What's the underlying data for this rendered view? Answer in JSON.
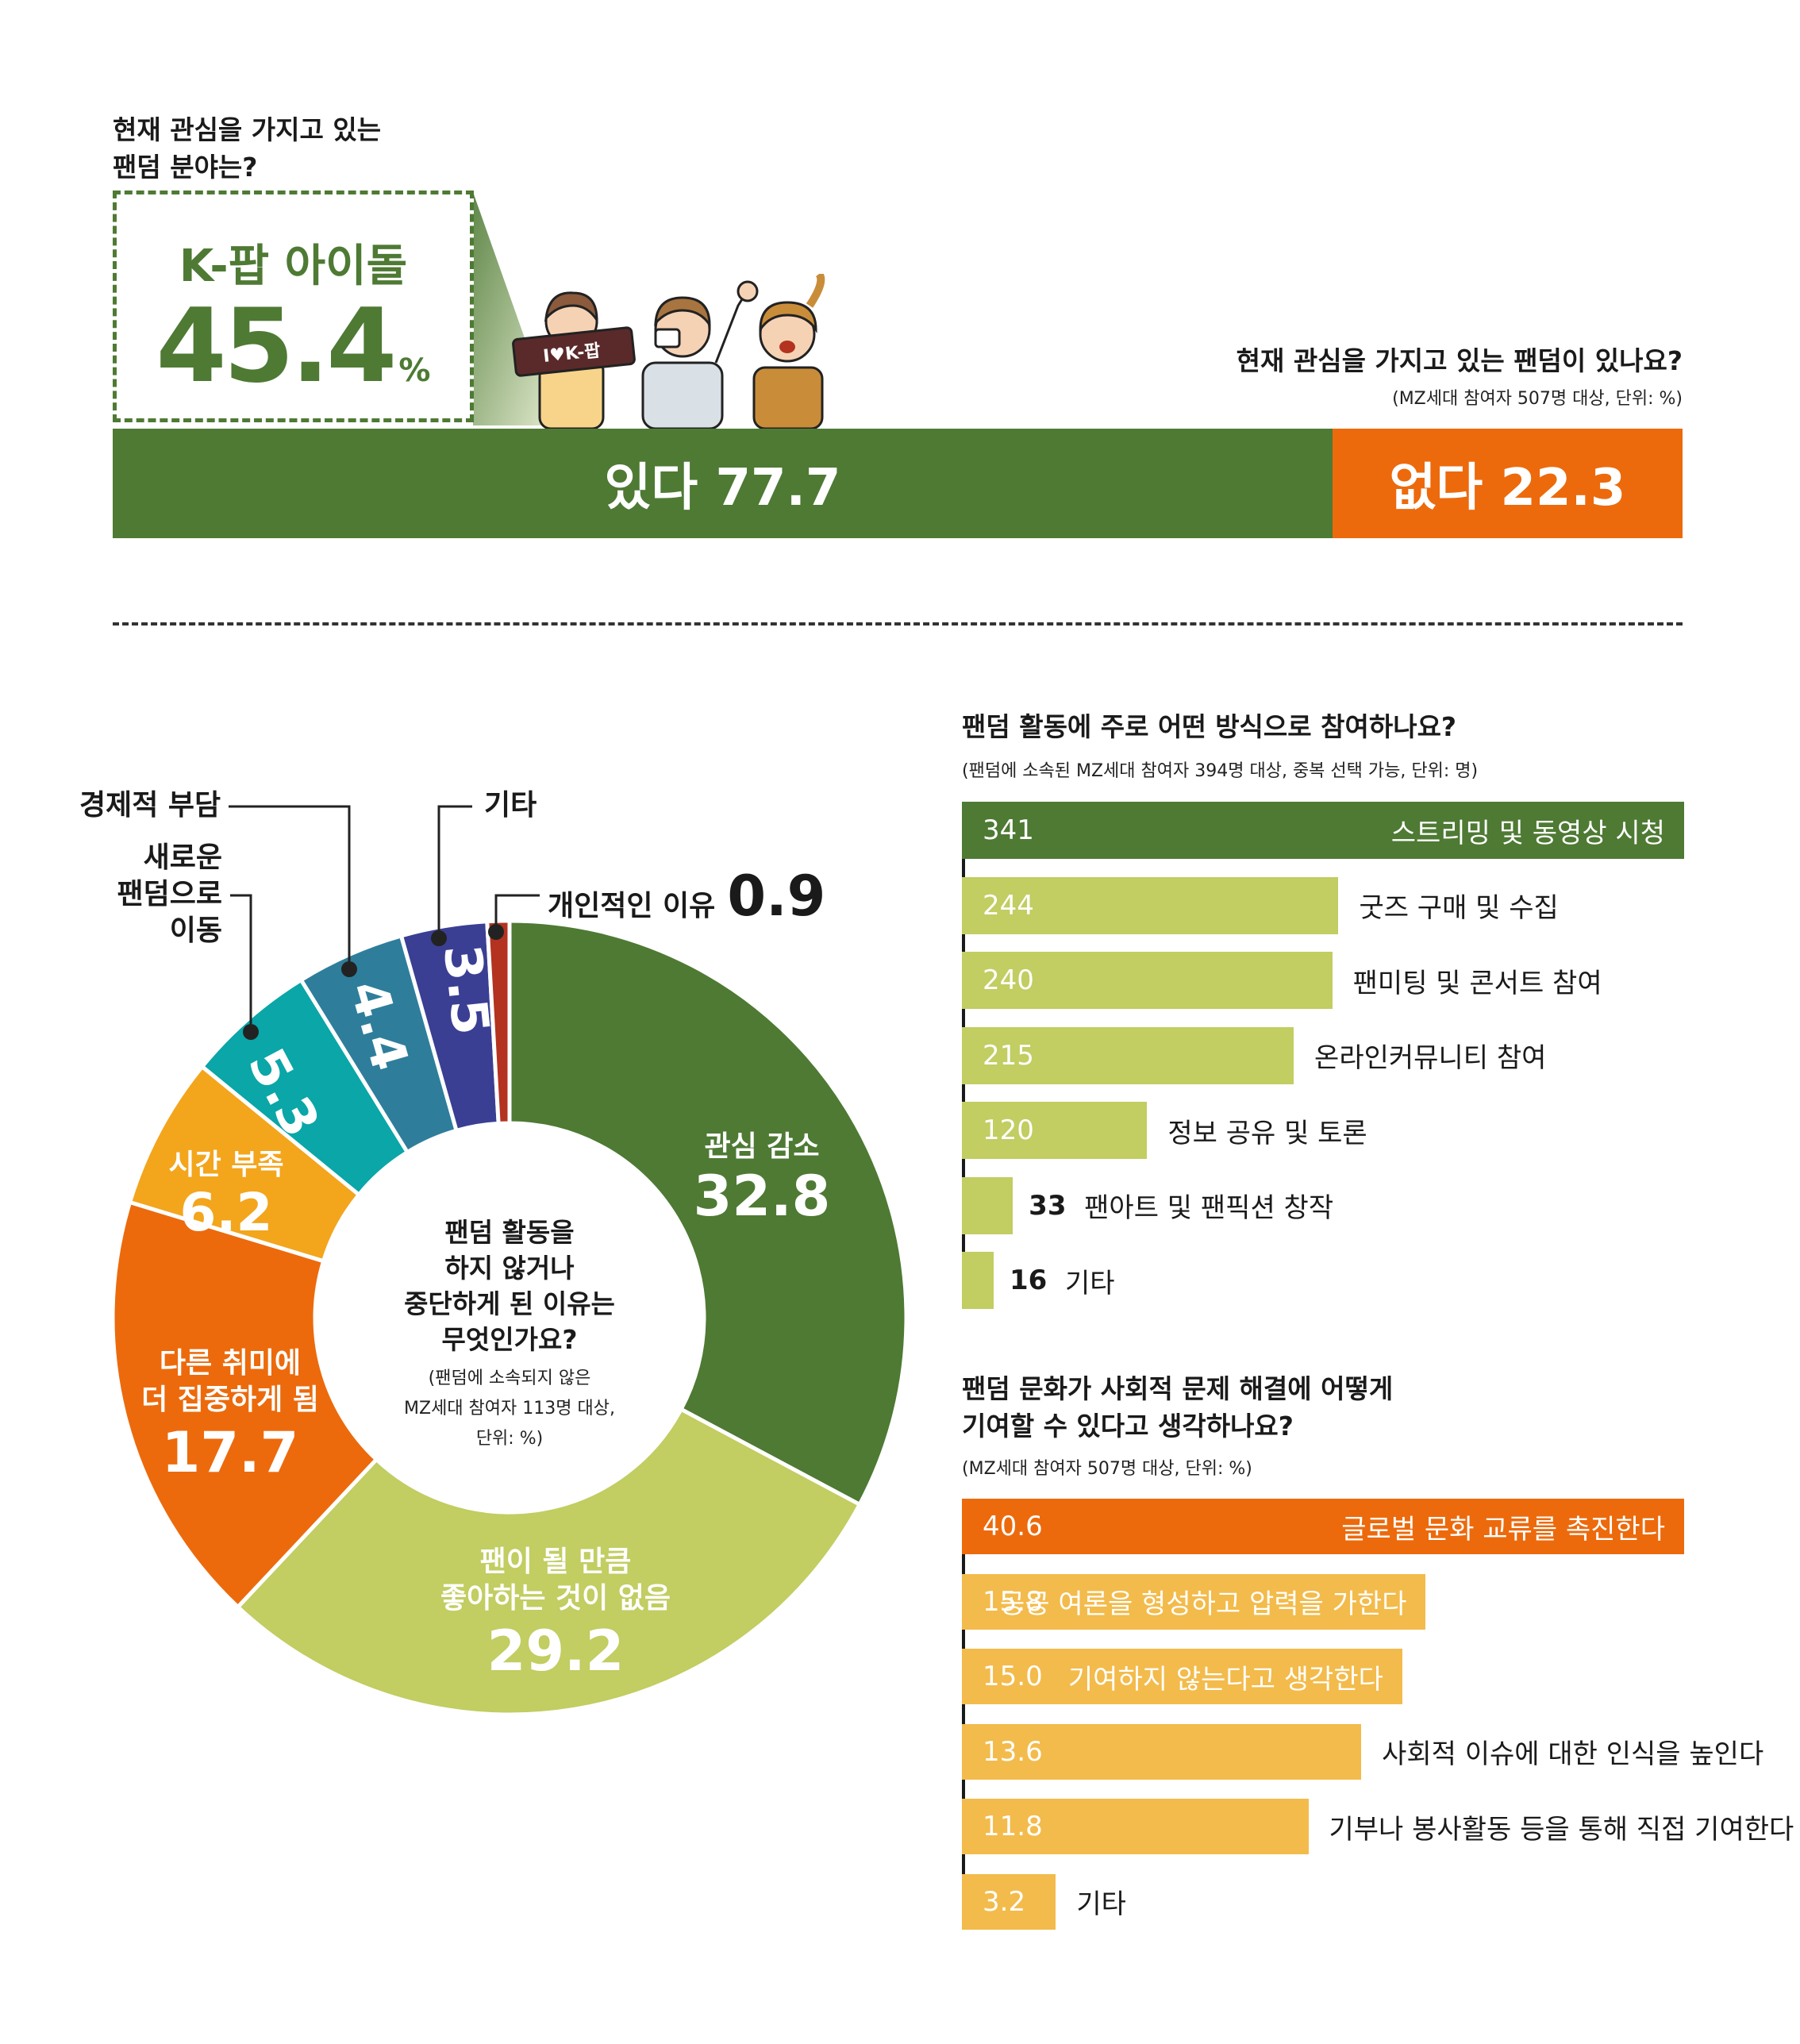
{
  "top": {
    "question": "현재 관심을 가지고 있는\n팬덤 분야는?",
    "highlight_category": "K-팝 아이돌",
    "highlight_value": "45.4",
    "highlight_unit": "%",
    "sign_text": "I♥K-팝"
  },
  "has_fandom": {
    "question": "현재 관심을 가지고 있는 팬덤이 있나요?",
    "note": "(MZ세대 참여자 507명 대상, 단위: %)",
    "yes_label": "있다 77.7",
    "no_label": "없다 22.3"
  },
  "donut": {
    "center_question": "팬덤 활동을\n하지 않거나\n중단하게 된 이유는\n무엇인가요?",
    "center_note": "(팬덤에 소속되지 않은\nMZ세대 참여자 113명 대상,\n단위: %)",
    "in_labels": {
      "interest": "관심 감소",
      "interest_v": "32.8",
      "nolike": "팬이 될 만큼\n좋아하는 것이 없음",
      "nolike_v": "29.2",
      "hobby": "다른 취미에\n더 집중하게 됨",
      "hobby_v": "17.7",
      "time": "시간 부족",
      "time_v": "6.2",
      "new_v": "5.3",
      "econ_v": "4.4",
      "etc_v": "3.5"
    },
    "out_labels": {
      "econ": "경제적 부담",
      "new": "새로운\n팬덤으로\n이동",
      "etc": "기타",
      "personal": "개인적인 이유",
      "personal_v": "0.9"
    }
  },
  "participation": {
    "question": "팬덤 활동에 주로 어떤 방식으로 참여하나요?",
    "note": "(팬덤에 소속된 MZ세대 참여자 394명 대상, 중복 선택 가능, 단위: 명)",
    "labels": [
      "스트리밍 및 동영상 시청",
      "굿즈 구매 및 수집",
      "팬미팅 및 콘서트 참여",
      "온라인커뮤니티 참여",
      "정보 공유 및 토론",
      "팬아트 및 팬픽션 창작",
      "기타"
    ],
    "values": [
      "341",
      "244",
      "240",
      "215",
      "120",
      "33",
      "16"
    ]
  },
  "social": {
    "question": "팬덤 문화가 사회적 문제 해결에 어떻게\n기여할 수 있다고 생각하나요?",
    "note": "(MZ세대 참여자 507명 대상, 단위: %)",
    "labels": [
      "글로벌 문화 교류를 촉진한다",
      "공공 여론을 형성하고 압력을 가한다",
      "기여하지 않는다고 생각한다",
      "사회적 이슈에 대한 인식을 높인다",
      "기부나 봉사활동 등을 통해 직접 기여한다",
      "기타"
    ],
    "values": [
      "40.6",
      "15.8",
      "15.0",
      "13.6",
      "11.8",
      "3.2"
    ]
  },
  "colors": {
    "green_dark": "#4e7a34",
    "orange": "#ec6a0c",
    "lime": "#c2cd62",
    "yellow_orange": "#f3a51c",
    "teal": "#0aa6a8",
    "steel_blue": "#2e7e9b",
    "navy": "#3a3f93",
    "red": "#b43220",
    "lt_orange": "#f3bb4b"
  },
  "chart_data": [
    {
      "type": "bar",
      "title": "현재 관심을 가지고 있는 팬덤이 있나요?",
      "categories": [
        "있다",
        "없다"
      ],
      "values": [
        77.7,
        22.3
      ]
    },
    {
      "type": "pie",
      "title": "팬덤 활동을 하지 않거나 중단하게 된 이유는 무엇인가요?",
      "categories": [
        "관심 감소",
        "팬이 될 만큼 좋아하는 것이 없음",
        "다른 취미에 더 집중하게 됨",
        "시간 부족",
        "새로운 팬덤으로 이동",
        "경제적 부담",
        "기타",
        "개인적인 이유"
      ],
      "values": [
        32.8,
        29.2,
        17.7,
        6.2,
        5.3,
        4.4,
        3.5,
        0.9
      ]
    },
    {
      "type": "bar",
      "title": "팬덤 활동에 주로 어떤 방식으로 참여하나요?",
      "categories": [
        "스트리밍 및 동영상 시청",
        "굿즈 구매 및 수집",
        "팬미팅 및 콘서트 참여",
        "온라인커뮤니티 참여",
        "정보 공유 및 토론",
        "팬아트 및 팬픽션 창작",
        "기타"
      ],
      "values": [
        341,
        244,
        240,
        215,
        120,
        33,
        16
      ]
    },
    {
      "type": "bar",
      "title": "팬덤 문화가 사회적 문제 해결에 어떻게 기여할 수 있다고 생각하나요?",
      "categories": [
        "글로벌 문화 교류를 촉진한다",
        "공공 여론을 형성하고 압력을 가한다",
        "기여하지 않는다고 생각한다",
        "사회적 이슈에 대한 인식을 높인다",
        "기부나 봉사활동 등을 통해 직접 기여한다",
        "기타"
      ],
      "values": [
        40.6,
        15.8,
        15.0,
        13.6,
        11.8,
        3.2
      ]
    }
  ]
}
